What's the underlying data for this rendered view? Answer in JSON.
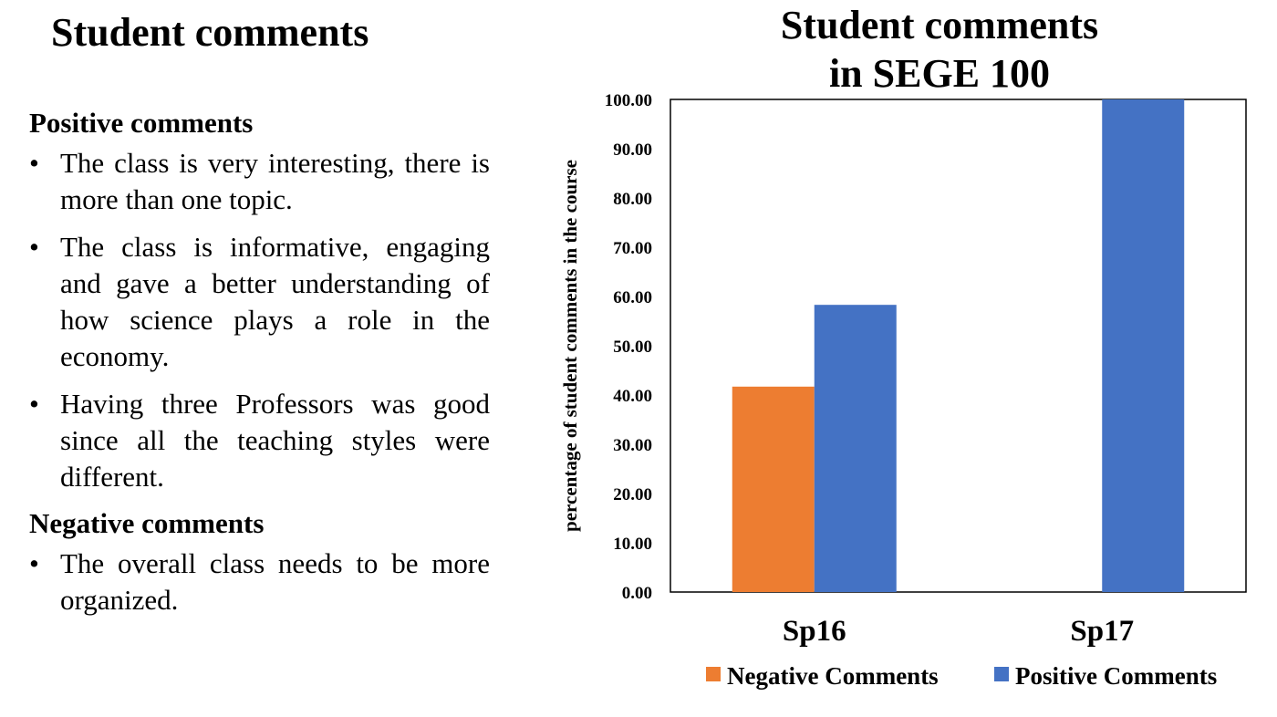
{
  "slide": {
    "title": "Student comments",
    "positive_heading": "Positive comments",
    "positive_items": [
      "The class is very interesting, there is more than one topic.",
      "The class is informative, engaging and gave a better understanding of how science plays a role in the economy.",
      "Having three Professors was good since all the teaching styles were different."
    ],
    "negative_heading": "Negative comments",
    "negative_items": [
      "The overall class needs to be more organized."
    ],
    "bullet_char": "•"
  },
  "chart_data": {
    "type": "bar",
    "title_lines": [
      "Student comments",
      "in SEGE 100"
    ],
    "categories": [
      "Sp16",
      "Sp17"
    ],
    "series": [
      {
        "name": "Negative Comments",
        "color": "#ED7D31",
        "values": [
          41.7,
          0
        ]
      },
      {
        "name": "Positive Comments",
        "color": "#4472C4",
        "values": [
          58.3,
          100
        ]
      }
    ],
    "xlabel": "",
    "ylabel": "percentage  of student comments in the course",
    "ylim": [
      0,
      100
    ],
    "yticks": [
      "0.00",
      "10.00",
      "20.00",
      "30.00",
      "40.00",
      "50.00",
      "60.00",
      "70.00",
      "80.00",
      "90.00",
      "100.00"
    ],
    "grid": false,
    "legend_position": "bottom"
  }
}
